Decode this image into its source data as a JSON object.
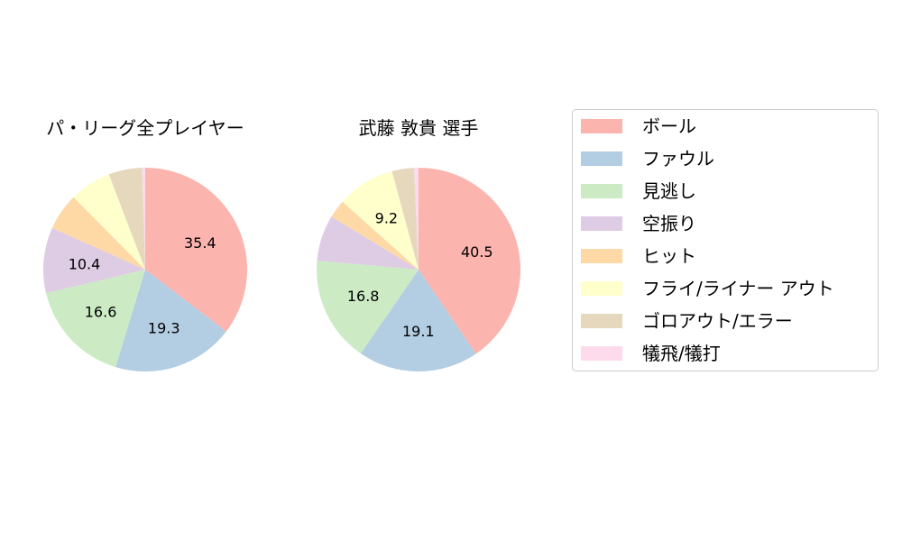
{
  "chart_data": [
    {
      "type": "pie",
      "title": "パ・リーグ全プレイヤー",
      "categories": [
        "ボール",
        "ファウル",
        "見逃し",
        "空振り",
        "ヒット",
        "フライ/ライナー アウト",
        "ゴロアウト/エラー",
        "犠飛/犠打"
      ],
      "values": [
        35.4,
        19.3,
        16.6,
        10.4,
        5.9,
        6.6,
        5.3,
        0.5
      ],
      "labels": [
        "35.4",
        "19.3",
        "16.6",
        "10.4",
        "",
        "",
        "",
        ""
      ]
    },
    {
      "type": "pie",
      "title": "武藤 敦貴  選手",
      "categories": [
        "ボール",
        "ファウル",
        "見逃し",
        "空振り",
        "ヒット",
        "フライ/ライナー アウト",
        "ゴロアウト/エラー",
        "犠飛/犠打"
      ],
      "values": [
        40.5,
        19.1,
        16.8,
        7.3,
        2.9,
        9.2,
        3.5,
        0.7
      ],
      "labels": [
        "40.5",
        "19.1",
        "16.8",
        "",
        "",
        "9.2",
        "",
        ""
      ]
    }
  ],
  "legend": {
    "placement": "right",
    "entries": [
      "ボール",
      "ファウル",
      "見逃し",
      "空振り",
      "ヒット",
      "フライ/ライナー アウト",
      "ゴロアウト/エラー",
      "犠飛/犠打"
    ]
  },
  "colors": [
    "#fbb4ae",
    "#b3cde3",
    "#ccebc5",
    "#decbe4",
    "#fed9a6",
    "#ffffcc",
    "#e5d8bd",
    "#fddaec"
  ]
}
